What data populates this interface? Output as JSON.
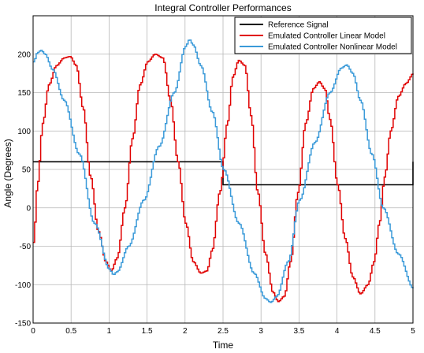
{
  "chart_data": {
    "type": "line",
    "title": "Integral Controller Performances",
    "xlabel": "Time",
    "ylabel": "Angle (Degrees)",
    "xlim": [
      0,
      5
    ],
    "ylim": [
      -150,
      250
    ],
    "xticks": [
      0,
      0.5,
      1,
      1.5,
      2,
      2.5,
      3,
      3.5,
      4,
      4.5,
      5
    ],
    "xtick_labels": [
      "0",
      "0.5",
      "1",
      "1.5",
      "2",
      "2.5",
      "3",
      "3.5",
      "4",
      "4.5",
      "5"
    ],
    "yticks": [
      -150,
      -100,
      -50,
      0,
      50,
      100,
      150,
      200
    ],
    "ytick_labels": [
      "-150",
      "-100",
      "-50",
      "0",
      "50",
      "100",
      "150",
      "200"
    ],
    "grid": true,
    "legend_position": "top-right",
    "series": [
      {
        "name": "Reference Signal",
        "color": "#000000",
        "style": "step",
        "x": [
          0,
          2.5,
          2.5,
          5,
          5
        ],
        "y": [
          60,
          60,
          30,
          30,
          60
        ]
      },
      {
        "name": "Emulated Controller Linear Model",
        "color": "#e00000",
        "style": "staircase",
        "x": [
          0,
          0.05,
          0.12,
          0.2,
          0.3,
          0.4,
          0.48,
          0.56,
          0.65,
          0.75,
          0.85,
          0.95,
          1.02,
          1.1,
          1.2,
          1.3,
          1.4,
          1.5,
          1.6,
          1.7,
          1.8,
          1.9,
          2.0,
          2.1,
          2.2,
          2.28,
          2.35,
          2.45,
          2.55,
          2.62,
          2.7,
          2.78,
          2.86,
          2.95,
          3.05,
          3.15,
          3.22,
          3.3,
          3.38,
          3.48,
          3.58,
          3.68,
          3.76,
          3.83,
          3.9,
          4.0,
          4.1,
          4.2,
          4.3,
          4.4,
          4.48,
          4.55,
          4.62,
          4.7,
          4.8,
          4.9,
          5.0
        ],
        "y": [
          -45,
          30,
          110,
          160,
          185,
          195,
          197,
          185,
          130,
          40,
          -30,
          -70,
          -82,
          -65,
          0,
          90,
          160,
          190,
          200,
          195,
          140,
          60,
          -20,
          -70,
          -85,
          -82,
          -55,
          20,
          110,
          170,
          192,
          185,
          120,
          20,
          -60,
          -110,
          -122,
          -115,
          -70,
          20,
          110,
          155,
          164,
          155,
          115,
          30,
          -40,
          -90,
          -112,
          -100,
          -70,
          -20,
          40,
          100,
          145,
          162,
          175
        ]
      },
      {
        "name": "Emulated Controller Nonlinear Model",
        "color": "#3a9ad9",
        "style": "staircase",
        "x": [
          0,
          0.05,
          0.1,
          0.15,
          0.25,
          0.4,
          0.6,
          0.8,
          1.0,
          1.05,
          1.1,
          1.25,
          1.45,
          1.65,
          1.85,
          2.0,
          2.05,
          2.1,
          2.2,
          2.35,
          2.5,
          2.7,
          2.9,
          3.05,
          3.12,
          3.2,
          3.35,
          3.5,
          3.7,
          3.9,
          4.05,
          4.12,
          4.2,
          4.3,
          4.45,
          4.6,
          4.8,
          5.0
        ],
        "y": [
          190,
          202,
          205,
          200,
          180,
          140,
          70,
          -20,
          -80,
          -87,
          -83,
          -50,
          10,
          80,
          150,
          210,
          219,
          212,
          185,
          125,
          50,
          -20,
          -85,
          -118,
          -123,
          -115,
          -70,
          10,
          85,
          150,
          182,
          186,
          175,
          140,
          70,
          0,
          -60,
          -105
        ]
      }
    ]
  }
}
